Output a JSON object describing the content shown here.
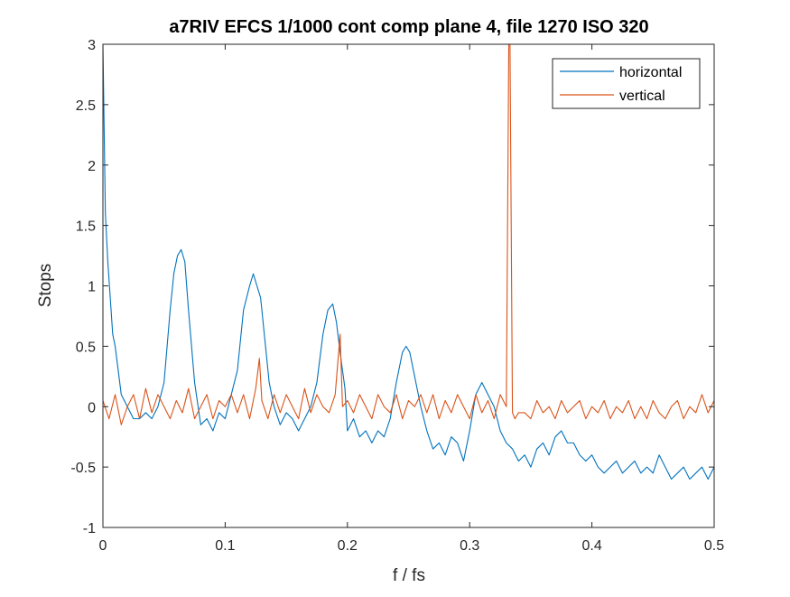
{
  "chart_data": {
    "type": "line",
    "title": "a7RIV EFCS 1/1000 cont comp plane 4, file 1270 ISO 320",
    "xlabel": "f / fs",
    "ylabel": "Stops",
    "xlim": [
      0,
      0.5
    ],
    "ylim": [
      -1,
      3
    ],
    "xticks": [
      0,
      0.1,
      0.2,
      0.3,
      0.4,
      0.5
    ],
    "xtick_labels": [
      "0",
      "0.1",
      "0.2",
      "0.3",
      "0.4",
      "0.5"
    ],
    "yticks": [
      -1,
      -0.5,
      0,
      0.5,
      1,
      1.5,
      2,
      2.5,
      3
    ],
    "ytick_labels": [
      "-1",
      "-0.5",
      "0",
      "0.5",
      "1",
      "1.5",
      "2",
      "2.5",
      "3"
    ],
    "grid": false,
    "legend_position": "top-right",
    "series": [
      {
        "name": "horizontal",
        "color": "#0072BD",
        "x": [
          0,
          0.002,
          0.004,
          0.006,
          0.008,
          0.01,
          0.015,
          0.02,
          0.025,
          0.03,
          0.035,
          0.04,
          0.045,
          0.05,
          0.055,
          0.058,
          0.061,
          0.064,
          0.067,
          0.07,
          0.075,
          0.08,
          0.085,
          0.09,
          0.095,
          0.1,
          0.105,
          0.11,
          0.115,
          0.12,
          0.123,
          0.126,
          0.129,
          0.132,
          0.136,
          0.14,
          0.145,
          0.15,
          0.155,
          0.16,
          0.165,
          0.17,
          0.175,
          0.18,
          0.184,
          0.188,
          0.191,
          0.194,
          0.198,
          0.2,
          0.205,
          0.21,
          0.215,
          0.22,
          0.225,
          0.23,
          0.235,
          0.24,
          0.245,
          0.248,
          0.251,
          0.254,
          0.257,
          0.26,
          0.265,
          0.27,
          0.275,
          0.28,
          0.285,
          0.29,
          0.295,
          0.3,
          0.305,
          0.31,
          0.315,
          0.32,
          0.325,
          0.33,
          0.335,
          0.34,
          0.345,
          0.35,
          0.355,
          0.36,
          0.365,
          0.37,
          0.375,
          0.38,
          0.385,
          0.39,
          0.395,
          0.4,
          0.405,
          0.41,
          0.415,
          0.42,
          0.425,
          0.43,
          0.435,
          0.44,
          0.445,
          0.45,
          0.455,
          0.46,
          0.465,
          0.47,
          0.475,
          0.48,
          0.485,
          0.49,
          0.495,
          0.5
        ],
        "values": [
          3.0,
          1.6,
          1.2,
          0.9,
          0.6,
          0.5,
          0.1,
          0.0,
          -0.1,
          -0.1,
          -0.05,
          -0.1,
          0.0,
          0.2,
          0.8,
          1.1,
          1.25,
          1.3,
          1.2,
          0.8,
          0.2,
          -0.15,
          -0.1,
          -0.2,
          -0.05,
          -0.1,
          0.1,
          0.3,
          0.8,
          1.0,
          1.1,
          1.0,
          0.9,
          0.6,
          0.2,
          0.0,
          -0.15,
          -0.05,
          -0.1,
          -0.2,
          -0.1,
          0.0,
          0.2,
          0.6,
          0.8,
          0.85,
          0.7,
          0.45,
          0.15,
          -0.2,
          -0.1,
          -0.25,
          -0.2,
          -0.3,
          -0.2,
          -0.25,
          -0.1,
          0.2,
          0.45,
          0.5,
          0.45,
          0.3,
          0.15,
          0.0,
          -0.2,
          -0.35,
          -0.3,
          -0.4,
          -0.25,
          -0.3,
          -0.45,
          -0.2,
          0.1,
          0.2,
          0.1,
          0.0,
          -0.2,
          -0.3,
          -0.35,
          -0.45,
          -0.4,
          -0.5,
          -0.35,
          -0.3,
          -0.4,
          -0.25,
          -0.2,
          -0.3,
          -0.3,
          -0.4,
          -0.45,
          -0.4,
          -0.5,
          -0.55,
          -0.5,
          -0.45,
          -0.55,
          -0.5,
          -0.45,
          -0.55,
          -0.5,
          -0.55,
          -0.4,
          -0.5,
          -0.6,
          -0.55,
          -0.5,
          -0.6,
          -0.55,
          -0.5,
          -0.6,
          -0.5
        ]
      },
      {
        "name": "vertical",
        "color": "#D95319",
        "x": [
          0,
          0.005,
          0.01,
          0.015,
          0.02,
          0.025,
          0.03,
          0.035,
          0.04,
          0.045,
          0.05,
          0.055,
          0.06,
          0.065,
          0.07,
          0.075,
          0.08,
          0.085,
          0.09,
          0.095,
          0.1,
          0.105,
          0.11,
          0.115,
          0.12,
          0.125,
          0.128,
          0.13,
          0.135,
          0.14,
          0.145,
          0.15,
          0.155,
          0.16,
          0.165,
          0.17,
          0.175,
          0.18,
          0.185,
          0.19,
          0.194,
          0.196,
          0.2,
          0.205,
          0.21,
          0.215,
          0.22,
          0.225,
          0.23,
          0.235,
          0.24,
          0.245,
          0.25,
          0.255,
          0.26,
          0.265,
          0.27,
          0.275,
          0.28,
          0.285,
          0.29,
          0.295,
          0.3,
          0.305,
          0.31,
          0.315,
          0.32,
          0.325,
          0.33,
          0.332,
          0.333,
          0.335,
          0.337,
          0.34,
          0.345,
          0.35,
          0.355,
          0.36,
          0.365,
          0.37,
          0.375,
          0.38,
          0.385,
          0.39,
          0.395,
          0.4,
          0.405,
          0.41,
          0.415,
          0.42,
          0.425,
          0.43,
          0.435,
          0.44,
          0.445,
          0.45,
          0.455,
          0.46,
          0.465,
          0.47,
          0.475,
          0.48,
          0.485,
          0.49,
          0.495,
          0.5
        ],
        "values": [
          0.05,
          -0.1,
          0.1,
          -0.15,
          0.0,
          0.1,
          -0.1,
          0.15,
          -0.05,
          0.1,
          0.0,
          -0.1,
          0.05,
          -0.05,
          0.15,
          -0.1,
          0.0,
          0.1,
          -0.1,
          0.05,
          0.0,
          0.1,
          -0.05,
          0.1,
          -0.1,
          0.15,
          0.4,
          0.05,
          -0.1,
          0.1,
          -0.05,
          0.1,
          0.0,
          -0.1,
          0.15,
          -0.05,
          0.1,
          0.0,
          -0.05,
          0.1,
          0.6,
          0.0,
          0.05,
          -0.05,
          0.1,
          0.0,
          -0.1,
          0.1,
          0.0,
          -0.05,
          0.1,
          -0.1,
          0.05,
          0.0,
          0.1,
          -0.05,
          0.1,
          -0.1,
          0.05,
          -0.05,
          0.1,
          0.0,
          -0.1,
          0.1,
          -0.05,
          0.05,
          -0.1,
          0.1,
          0.0,
          3.0,
          3.0,
          -0.05,
          -0.1,
          -0.05,
          -0.05,
          -0.1,
          0.05,
          -0.05,
          0.0,
          -0.1,
          0.05,
          -0.05,
          0.0,
          0.05,
          -0.1,
          0.0,
          -0.05,
          0.05,
          -0.1,
          0.0,
          -0.05,
          0.05,
          -0.1,
          0.0,
          -0.1,
          0.05,
          -0.05,
          -0.1,
          0.0,
          0.05,
          -0.1,
          0.0,
          -0.05,
          0.1,
          -0.05,
          0.05
        ]
      }
    ]
  }
}
